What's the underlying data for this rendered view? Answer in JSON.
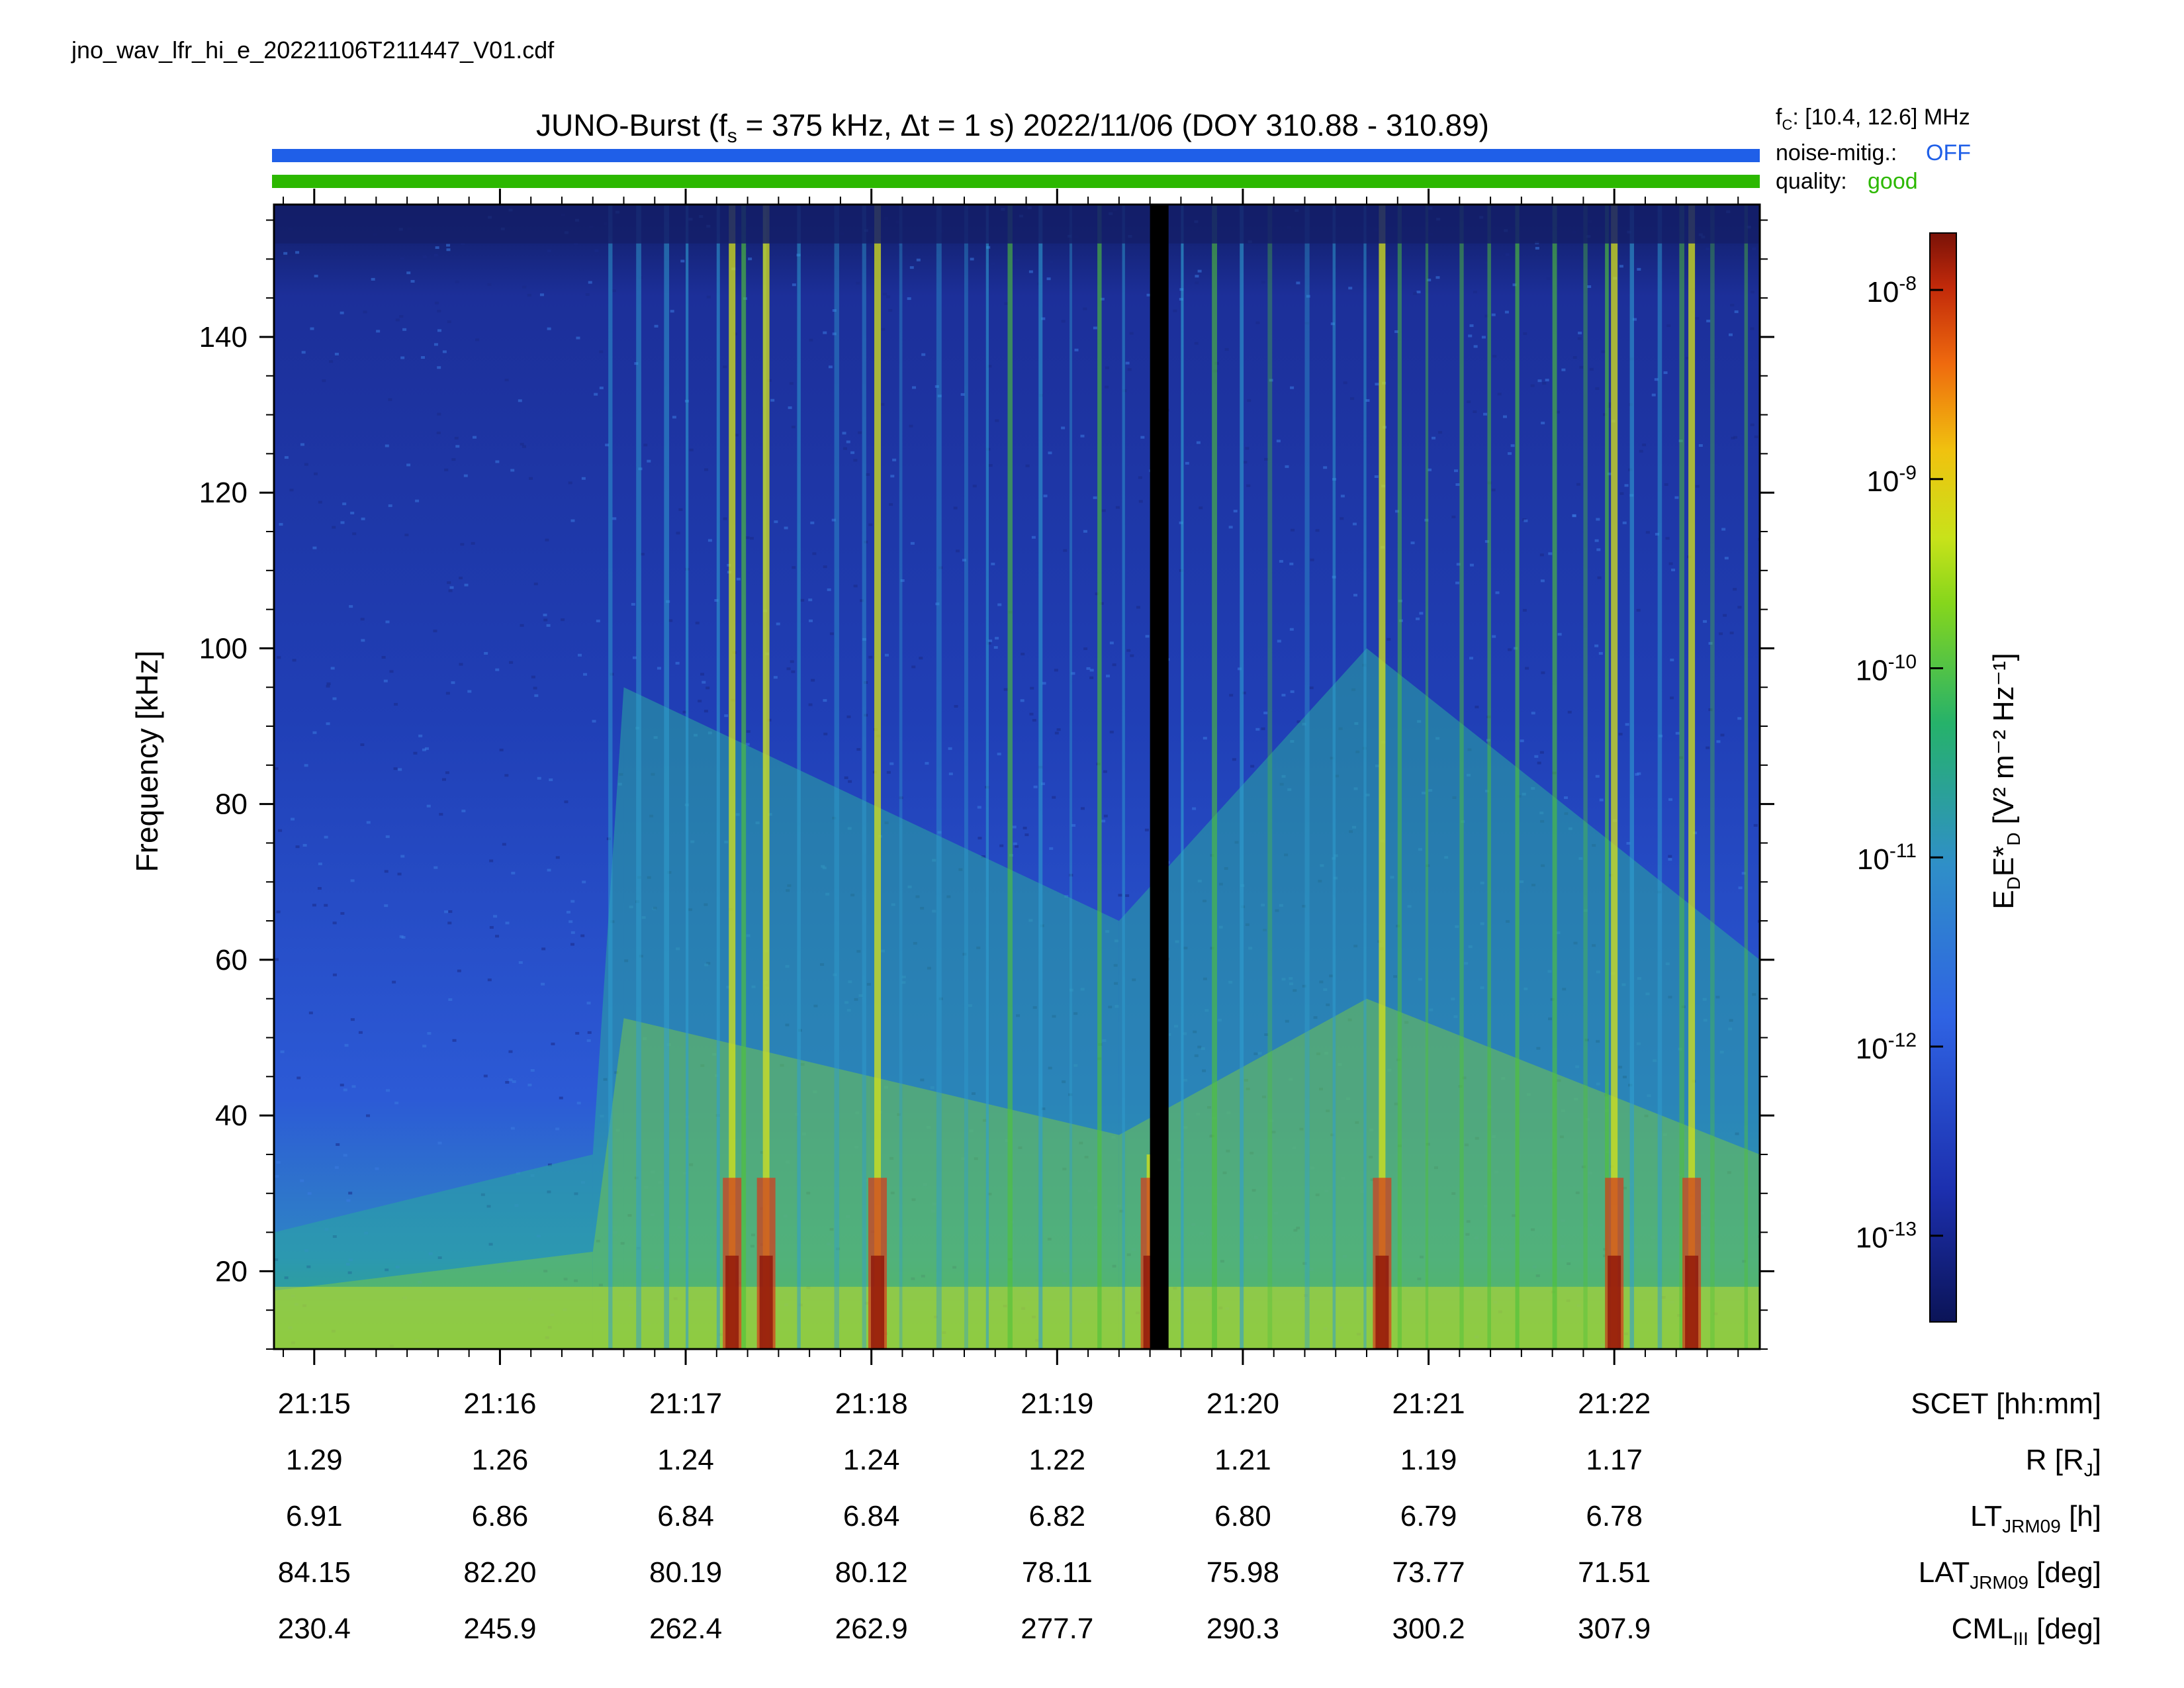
{
  "file_label": "jno_wav_lfr_hi_e_20221106T211447_V01.cdf",
  "header": {
    "title_prefix": "JUNO-Burst (f",
    "title_fs_sub": "s",
    "title_fs_rest": " = 375 kHz, ",
    "title_dt": "Δt = 1 s)  2022/11/06 (DOY 310.88 - 310.89)",
    "fc_label": "f",
    "fc_sub": "C",
    "fc_value": ": [10.4, 12.6] MHz",
    "noise_label": "noise-mitig.:",
    "noise_value": "OFF",
    "quality_label": "quality:",
    "quality_value": "good",
    "noise_color": "#1f5fe8",
    "quality_color": "#2cb800"
  },
  "colorbar": {
    "label_main": "E",
    "label_sub1": "D",
    "label_star": "E*",
    "label_sub2": "D",
    "label_units": "[V² m⁻² Hz⁻¹]",
    "ticks": [
      {
        "base": "10",
        "exp": "-8"
      },
      {
        "base": "10",
        "exp": "-9"
      },
      {
        "base": "10",
        "exp": "-10"
      },
      {
        "base": "10",
        "exp": "-11"
      },
      {
        "base": "10",
        "exp": "-12"
      },
      {
        "base": "10",
        "exp": "-13"
      }
    ]
  },
  "ephemeris": {
    "labels": [
      {
        "main": "SCET [hh:mm]",
        "sub": "",
        "tail": ""
      },
      {
        "main": "R [R",
        "sub": "J",
        "tail": "]"
      },
      {
        "main": "LT",
        "sub": "JRM09",
        "tail": " [h]"
      },
      {
        "main": "LAT",
        "sub": "JRM09",
        "tail": " [deg]"
      },
      {
        "main": "CML",
        "sub": "III",
        "tail": " [deg]"
      }
    ],
    "rows": [
      [
        "21:15",
        "21:16",
        "21:17",
        "21:18",
        "21:19",
        "21:20",
        "21:21",
        "21:22"
      ],
      [
        "1.29",
        "1.26",
        "1.24",
        "1.24",
        "1.22",
        "1.21",
        "1.19",
        "1.17"
      ],
      [
        "6.91",
        "6.86",
        "6.84",
        "6.84",
        "6.82",
        "6.80",
        "6.79",
        "6.78"
      ],
      [
        "84.15",
        "82.20",
        "80.19",
        "80.12",
        "78.11",
        "75.98",
        "73.77",
        "71.51"
      ],
      [
        "230.4",
        "245.9",
        "262.4",
        "262.9",
        "277.7",
        "290.3",
        "300.2",
        "307.9"
      ]
    ]
  },
  "chart_data": {
    "type": "heatmap",
    "title": "JUNO-Burst (fs = 375 kHz, Δt = 1 s)  2022/11/06 (DOY 310.88 - 310.89)",
    "xlabel": "SCET [hh:mm]",
    "ylabel": "Frequency [kHz]",
    "ylim": [
      10,
      157
    ],
    "yticks": [
      20,
      40,
      60,
      80,
      100,
      120,
      140
    ],
    "xlim": [
      "21:14:47",
      "21:22:47"
    ],
    "xticks": [
      "21:15",
      "21:16",
      "21:17",
      "21:18",
      "21:19",
      "21:20",
      "21:21",
      "21:22"
    ],
    "colorbar_range": [
      3.5e-14,
      2e-08
    ],
    "colorbar_scale": "log",
    "data_gap": [
      "21:19:30",
      "21:19:36"
    ],
    "background_level": [
      {
        "t": "21:14:47",
        "low_freq_limit_kHz": 25
      },
      {
        "t": "21:16:30",
        "low_freq_limit_kHz": 35
      },
      {
        "t": "21:16:40",
        "low_freq_limit_kHz": 95
      },
      {
        "t": "21:19:20",
        "low_freq_limit_kHz": 65
      },
      {
        "t": "21:20:40",
        "low_freq_limit_kHz": 100
      },
      {
        "t": "21:22:47",
        "low_freq_limit_kHz": 60
      }
    ],
    "intense_bursts": [
      {
        "t": "21:17:15",
        "f_top_kHz": 157,
        "peak": "1e-9"
      },
      {
        "t": "21:17:26",
        "f_top_kHz": 157,
        "peak": "1e-9"
      },
      {
        "t": "21:18:02",
        "f_top_kHz": 157,
        "peak": "5e-9"
      },
      {
        "t": "21:19:30",
        "f_top_kHz": 35,
        "peak": "2e-8"
      },
      {
        "t": "21:20:45",
        "f_top_kHz": 157,
        "peak": "2e-8"
      },
      {
        "t": "21:22:00",
        "f_top_kHz": 157,
        "peak": "1e-9"
      },
      {
        "t": "21:22:25",
        "f_top_kHz": 157,
        "peak": "5e-9"
      }
    ]
  }
}
